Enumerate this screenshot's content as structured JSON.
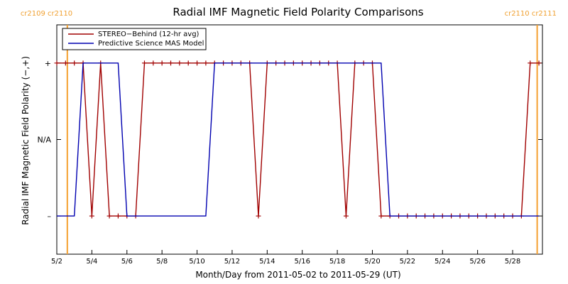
{
  "chart_data": {
    "type": "line",
    "title": "Radial IMF Magnetic Field Polarity Comparisons",
    "xlabel": "Month/Day from 2011-05-02 to 2011-05-29 (UT)",
    "ylabel": "Radial IMF Magnetic Field Polarity (−,+)",
    "xlim": [
      0,
      27.7
    ],
    "ylim": [
      -1.5,
      1.5
    ],
    "x_ticks": [
      {
        "x": 0,
        "label": "5/2"
      },
      {
        "x": 2,
        "label": "5/4"
      },
      {
        "x": 4,
        "label": "5/6"
      },
      {
        "x": 6,
        "label": "5/8"
      },
      {
        "x": 8,
        "label": "5/10"
      },
      {
        "x": 10,
        "label": "5/12"
      },
      {
        "x": 12,
        "label": "5/14"
      },
      {
        "x": 14,
        "label": "5/16"
      },
      {
        "x": 16,
        "label": "5/18"
      },
      {
        "x": 18,
        "label": "5/20"
      },
      {
        "x": 20,
        "label": "5/22"
      },
      {
        "x": 22,
        "label": "5/24"
      },
      {
        "x": 24,
        "label": "5/26"
      },
      {
        "x": 26,
        "label": "5/28"
      }
    ],
    "y_ticks": [
      {
        "y": 1,
        "label": "+"
      },
      {
        "y": 0,
        "label": "N/A"
      },
      {
        "y": -1,
        "label": "–"
      }
    ],
    "carrington_markers": [
      {
        "x": 0.6,
        "label": "cr2109 cr2110"
      },
      {
        "x": 27.4,
        "label": "cr2110 cr2111"
      }
    ],
    "marker_color": "#f5a030",
    "legend_position": "top-left",
    "series": [
      {
        "name": "STEREO−Behind (12-hr avg)",
        "color": "#a00000",
        "marker": "+",
        "x": [
          0,
          0.5,
          1,
          1.5,
          2,
          2.5,
          3,
          3.5,
          4,
          4.5,
          5,
          5.5,
          6,
          6.5,
          7,
          7.5,
          8,
          8.5,
          9,
          9.5,
          10,
          10.5,
          11,
          11.5,
          12,
          12.5,
          13,
          13.5,
          14,
          14.5,
          15,
          15.5,
          16,
          16.5,
          17,
          17.5,
          18,
          18.5,
          19,
          19.5,
          20,
          20.5,
          21,
          21.5,
          22,
          22.5,
          23,
          23.5,
          24,
          24.5,
          25,
          25.5,
          26,
          26.5,
          27,
          27.5
        ],
        "y": [
          1,
          1,
          1,
          1,
          -1,
          1,
          -1,
          -1,
          -1,
          -1,
          1,
          1,
          1,
          1,
          1,
          1,
          1,
          1,
          1,
          1,
          1,
          1,
          1,
          -1,
          1,
          1,
          1,
          1,
          1,
          1,
          1,
          1,
          1,
          -1,
          1,
          1,
          1,
          -1,
          -1,
          -1,
          -1,
          -1,
          -1,
          -1,
          -1,
          -1,
          -1,
          -1,
          -1,
          -1,
          -1,
          -1,
          -1,
          -1,
          1,
          1
        ]
      },
      {
        "name": "Predictive Science MAS Model",
        "color": "#0000b0",
        "x": [
          0,
          0.5,
          1,
          1.5,
          2,
          2.5,
          3,
          3.5,
          4,
          4.5,
          5,
          5.5,
          6,
          6.5,
          7,
          7.5,
          8,
          8.5,
          9,
          9.5,
          10,
          10.5,
          11,
          11.5,
          12,
          12.5,
          13,
          13.5,
          14,
          14.5,
          15,
          15.5,
          16,
          16.5,
          17,
          17.5,
          18,
          18.5,
          19,
          19.5,
          20,
          20.5,
          21,
          21.5,
          22,
          22.5,
          23,
          23.5,
          24,
          24.5,
          25,
          25.5,
          26,
          26.5,
          27,
          27.5
        ],
        "y": [
          -1,
          -1,
          -1,
          1,
          1,
          1,
          1,
          1,
          -1,
          -1,
          -1,
          -1,
          -1,
          -1,
          -1,
          -1,
          -1,
          -1,
          1,
          1,
          1,
          1,
          1,
          1,
          1,
          1,
          1,
          1,
          1,
          1,
          1,
          1,
          1,
          1,
          1,
          1,
          1,
          1,
          -1,
          -1,
          -1,
          -1,
          -1,
          -1,
          -1,
          -1,
          -1,
          -1,
          -1,
          -1,
          -1,
          -1,
          -1,
          -1,
          -1,
          -1
        ]
      }
    ]
  }
}
